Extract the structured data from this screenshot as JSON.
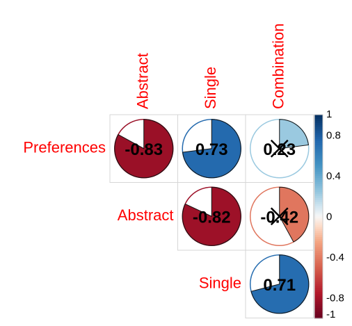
{
  "chart_data": {
    "type": "heatmap",
    "subtype": "upper-triangle correlation matrix with pie glyphs",
    "row_labels": [
      "Preferences",
      "Abstract",
      "Single"
    ],
    "column_labels": [
      "Abstract",
      "Single",
      "Combination"
    ],
    "cells": [
      {
        "row": "Preferences",
        "column": "Abstract",
        "value": -0.83,
        "label": "-0.83",
        "significant": true
      },
      {
        "row": "Preferences",
        "column": "Single",
        "value": 0.73,
        "label": "0.73",
        "significant": true
      },
      {
        "row": "Preferences",
        "column": "Combination",
        "value": 0.23,
        "label": "0.23",
        "significant": false
      },
      {
        "row": "Abstract",
        "column": "Single",
        "value": -0.82,
        "label": "-0.82",
        "significant": true
      },
      {
        "row": "Abstract",
        "column": "Combination",
        "value": -0.42,
        "label": "-0.42",
        "significant": false
      },
      {
        "row": "Single",
        "column": "Combination",
        "value": 0.71,
        "label": "0.71",
        "significant": true
      }
    ],
    "colorbar": {
      "range": [
        -1,
        1
      ],
      "ticks": [
        {
          "value": 1,
          "label": "1"
        },
        {
          "value": 0.8,
          "label": "0.8"
        },
        {
          "value": 0.4,
          "label": "0.4"
        },
        {
          "value": 0,
          "label": "0"
        },
        {
          "value": -0.4,
          "label": "-0.4"
        },
        {
          "value": -0.8,
          "label": "-0.8"
        },
        {
          "value": -1,
          "label": "-1"
        }
      ],
      "colors": [
        {
          "value": -1,
          "color": "#67001F"
        },
        {
          "value": -0.75,
          "color": "#B2182B"
        },
        {
          "value": -0.5,
          "color": "#D6604D"
        },
        {
          "value": -0.25,
          "color": "#F4A582"
        },
        {
          "value": -0.1,
          "color": "#FDDBC7"
        },
        {
          "value": 0,
          "color": "#F7F7F7"
        },
        {
          "value": 0.1,
          "color": "#D1E5F0"
        },
        {
          "value": 0.25,
          "color": "#92C5DE"
        },
        {
          "value": 0.5,
          "color": "#4393C3"
        },
        {
          "value": 0.75,
          "color": "#2166AC"
        },
        {
          "value": 1,
          "color": "#053061"
        }
      ]
    },
    "label_color": "#FF0000",
    "value_label_color": "#000000",
    "insignificant_marker": "cross"
  }
}
